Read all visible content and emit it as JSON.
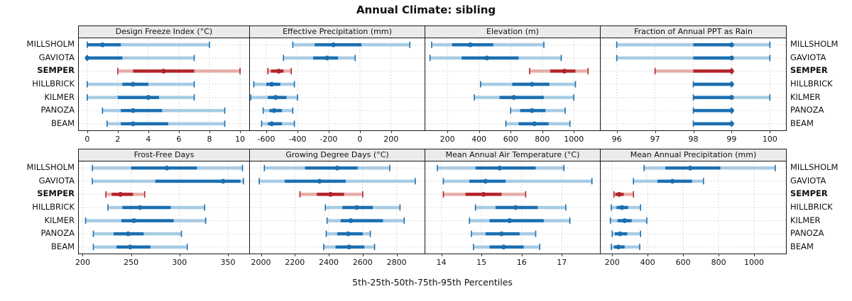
{
  "title": "Annual Climate: sibling",
  "xlabel": "5th-25th-50th-75th-95th Percentiles",
  "stations": [
    "MILLSHOLM",
    "GAVIOTA",
    "SEMPER",
    "HILLBRICK",
    "KILMER",
    "PANOZA",
    "BEAM"
  ],
  "highlight_station": "SEMPER",
  "colors": {
    "blue": "#1C6FB0",
    "blue_light": "#A7CBE4",
    "red": "#B2252A",
    "red_light": "#E7ADA9",
    "grid": "#BDBDBD",
    "strip_bg": "#EBEBEB",
    "border": "#1A1A1A",
    "text": "#111111"
  },
  "percentile_labels": [
    "5th",
    "25th",
    "50th",
    "75th",
    "95th"
  ],
  "chart_data": [
    {
      "type": "segplot-percentiles",
      "title": "Design Freeze Index (°C)",
      "row": 0,
      "col": 0,
      "ticks": [
        0,
        2,
        4,
        6,
        8,
        10
      ],
      "domain": [
        -0.55,
        10.6
      ],
      "series": [
        {
          "name": "MILLSHOLM",
          "values": [
            0,
            0,
            1,
            2.2,
            8
          ]
        },
        {
          "name": "GAVIOTA",
          "values": [
            0,
            0,
            0,
            2.3,
            7
          ]
        },
        {
          "name": "SEMPER",
          "values": [
            2,
            3,
            5,
            7,
            10
          ]
        },
        {
          "name": "HILLBRICK",
          "values": [
            0,
            2.3,
            3,
            4,
            7
          ]
        },
        {
          "name": "KILMER",
          "values": [
            0,
            2,
            4,
            4.7,
            7
          ]
        },
        {
          "name": "PANOZA",
          "values": [
            1,
            2.2,
            3,
            4.9,
            9
          ]
        },
        {
          "name": "BEAM",
          "values": [
            1.3,
            2.2,
            3,
            5.3,
            9
          ]
        }
      ]
    },
    {
      "type": "segplot-percentiles",
      "title": "Effective Precipitation (mm)",
      "row": 0,
      "col": 1,
      "ticks": [
        -600,
        -400,
        -200,
        0,
        200
      ],
      "domain": [
        -705,
        415
      ],
      "series": [
        {
          "name": "MILLSHOLM",
          "values": [
            -430,
            -290,
            -170,
            10,
            320
          ]
        },
        {
          "name": "GAVIOTA",
          "values": [
            -490,
            -300,
            -210,
            -140,
            -30
          ]
        },
        {
          "name": "SEMPER",
          "values": [
            -590,
            -570,
            -520,
            -490,
            -440
          ]
        },
        {
          "name": "HILLBRICK",
          "values": [
            -680,
            -600,
            -565,
            -510,
            -420
          ]
        },
        {
          "name": "KILMER",
          "values": [
            -700,
            -590,
            -540,
            -470,
            -400
          ]
        },
        {
          "name": "PANOZA",
          "values": [
            -620,
            -580,
            -550,
            -500,
            -430
          ]
        },
        {
          "name": "BEAM",
          "values": [
            -630,
            -590,
            -565,
            -500,
            -420
          ]
        }
      ]
    },
    {
      "type": "segplot-percentiles",
      "title": "Elevation (m)",
      "row": 0,
      "col": 2,
      "ticks": [
        200,
        400,
        600,
        800,
        1000
      ],
      "domain": [
        60,
        1165
      ],
      "series": [
        {
          "name": "MILLSHOLM",
          "values": [
            100,
            230,
            345,
            490,
            810
          ]
        },
        {
          "name": "GAVIOTA",
          "values": [
            90,
            290,
            450,
            650,
            920
          ]
        },
        {
          "name": "SEMPER",
          "values": [
            720,
            850,
            940,
            1010,
            1090
          ]
        },
        {
          "name": "HILLBRICK",
          "values": [
            410,
            610,
            735,
            845,
            1010
          ]
        },
        {
          "name": "KILMER",
          "values": [
            370,
            530,
            620,
            810,
            1000
          ]
        },
        {
          "name": "PANOZA",
          "values": [
            600,
            660,
            735,
            820,
            945
          ]
        },
        {
          "name": "BEAM",
          "values": [
            570,
            650,
            750,
            840,
            975
          ]
        }
      ]
    },
    {
      "type": "segplot-percentiles",
      "title": "Fraction of Annual PPT as Rain",
      "row": 0,
      "col": 3,
      "ticks": [
        96,
        97,
        98,
        99,
        100
      ],
      "domain": [
        95.58,
        100.42
      ],
      "series": [
        {
          "name": "MILLSHOLM",
          "values": [
            96,
            98,
            99,
            99,
            100
          ]
        },
        {
          "name": "GAVIOTA",
          "values": [
            96,
            98,
            99,
            99,
            100
          ]
        },
        {
          "name": "SEMPER",
          "values": [
            97,
            98,
            99,
            99,
            99
          ]
        },
        {
          "name": "HILLBRICK",
          "values": [
            98,
            98,
            99,
            99,
            99
          ]
        },
        {
          "name": "KILMER",
          "values": [
            98,
            98,
            99,
            99,
            100
          ]
        },
        {
          "name": "PANOZA",
          "values": [
            98,
            98,
            99,
            99,
            99
          ]
        },
        {
          "name": "BEAM",
          "values": [
            98,
            98,
            99,
            99,
            99
          ]
        }
      ]
    },
    {
      "type": "segplot-percentiles",
      "title": "Frost-Free Days",
      "row": 1,
      "col": 0,
      "ticks": [
        200,
        250,
        300,
        350
      ],
      "domain": [
        196,
        372
      ],
      "series": [
        {
          "name": "MILLSHOLM",
          "values": [
            210,
            250,
            287,
            318,
            365
          ]
        },
        {
          "name": "GAVIOTA",
          "values": [
            210,
            275,
            345,
            363,
            366
          ]
        },
        {
          "name": "SEMPER",
          "values": [
            224,
            230,
            239,
            252,
            264
          ]
        },
        {
          "name": "HILLBRICK",
          "values": [
            226,
            241,
            259,
            291,
            326
          ]
        },
        {
          "name": "KILMER",
          "values": [
            203,
            240,
            253,
            294,
            327
          ]
        },
        {
          "name": "PANOZA",
          "values": [
            211,
            232,
            247,
            263,
            302
          ]
        },
        {
          "name": "BEAM",
          "values": [
            211,
            235,
            249,
            270,
            308
          ]
        }
      ]
    },
    {
      "type": "segplot-percentiles",
      "title": "Growing Degree Days (°C)",
      "row": 1,
      "col": 1,
      "ticks": [
        2000,
        2200,
        2400,
        2600,
        2800
      ],
      "domain": [
        1935,
        2965
      ],
      "series": [
        {
          "name": "MILLSHOLM",
          "values": [
            2020,
            2260,
            2450,
            2570,
            2760
          ]
        },
        {
          "name": "GAVIOTA",
          "values": [
            1990,
            2140,
            2345,
            2500,
            2910
          ]
        },
        {
          "name": "SEMPER",
          "values": [
            2230,
            2330,
            2410,
            2490,
            2600
          ]
        },
        {
          "name": "HILLBRICK",
          "values": [
            2380,
            2480,
            2565,
            2660,
            2820
          ]
        },
        {
          "name": "KILMER",
          "values": [
            2390,
            2470,
            2530,
            2720,
            2845
          ]
        },
        {
          "name": "PANOZA",
          "values": [
            2385,
            2450,
            2515,
            2600,
            2645
          ]
        },
        {
          "name": "BEAM",
          "values": [
            2370,
            2440,
            2520,
            2610,
            2670
          ]
        }
      ]
    },
    {
      "type": "segplot-percentiles",
      "title": "Mean Annual Air Temperature (°C)",
      "row": 1,
      "col": 2,
      "ticks": [
        14,
        15,
        16,
        17
      ],
      "domain": [
        13.6,
        17.95
      ],
      "series": [
        {
          "name": "MILLSHOLM",
          "values": [
            13.9,
            14.85,
            15.45,
            16.35,
            17.05
          ]
        },
        {
          "name": "GAVIOTA",
          "values": [
            14.05,
            14.7,
            15.1,
            15.6,
            17.75
          ]
        },
        {
          "name": "SEMPER",
          "values": [
            14.05,
            14.6,
            15.05,
            15.5,
            16.1
          ]
        },
        {
          "name": "HILLBRICK",
          "values": [
            14.85,
            15.35,
            15.85,
            16.4,
            17.1
          ]
        },
        {
          "name": "KILMER",
          "values": [
            14.7,
            15.2,
            15.7,
            16.55,
            17.2
          ]
        },
        {
          "name": "PANOZA",
          "values": [
            14.75,
            15.1,
            15.5,
            15.95,
            16.35
          ]
        },
        {
          "name": "BEAM",
          "values": [
            14.8,
            15.2,
            15.55,
            16.05,
            16.45
          ]
        }
      ]
    },
    {
      "type": "segplot-percentiles",
      "title": "Mean Annual Precipitation (mm)",
      "row": 1,
      "col": 3,
      "ticks": [
        200,
        400,
        600,
        800,
        1000
      ],
      "domain": [
        135,
        1180
      ],
      "series": [
        {
          "name": "MILLSHOLM",
          "values": [
            380,
            500,
            640,
            810,
            1120
          ]
        },
        {
          "name": "GAVIOTA",
          "values": [
            320,
            455,
            540,
            650,
            715
          ]
        },
        {
          "name": "SEMPER",
          "values": [
            210,
            218,
            240,
            265,
            320
          ]
        },
        {
          "name": "HILLBRICK",
          "values": [
            195,
            225,
            255,
            290,
            360
          ]
        },
        {
          "name": "KILMER",
          "values": [
            190,
            230,
            270,
            310,
            395
          ]
        },
        {
          "name": "PANOZA",
          "values": [
            200,
            215,
            245,
            285,
            360
          ]
        },
        {
          "name": "BEAM",
          "values": [
            195,
            210,
            235,
            270,
            355
          ]
        }
      ]
    }
  ]
}
